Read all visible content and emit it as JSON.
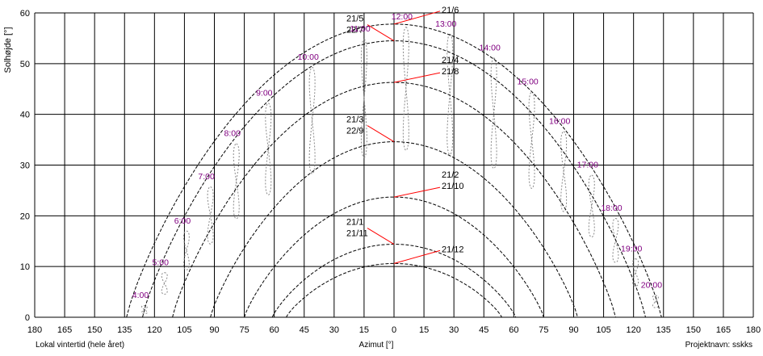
{
  "chart_data": {
    "type": "line",
    "title": "",
    "xlabel": "Azimut [°]",
    "ylabel": "Solhøjde [°]",
    "xlim": [
      -180,
      180
    ],
    "ylim": [
      0,
      60
    ],
    "x_ticks": [
      -180,
      -165,
      -150,
      -135,
      -120,
      -105,
      -90,
      -75,
      -60,
      -45,
      -30,
      -15,
      0,
      15,
      30,
      45,
      60,
      75,
      90,
      105,
      120,
      135,
      150,
      165,
      180
    ],
    "x_tick_labels": [
      "180",
      "165",
      "150",
      "135",
      "120",
      "105",
      "90",
      "75",
      "60",
      "45",
      "30",
      "15",
      "0",
      "15",
      "30",
      "45",
      "60",
      "75",
      "90",
      "105",
      "120",
      "135",
      "150",
      "165",
      "180"
    ],
    "y_ticks": [
      0,
      10,
      20,
      30,
      40,
      50,
      60
    ],
    "y_tick_labels": [
      "0",
      "10",
      "20",
      "30",
      "40",
      "50",
      "60"
    ],
    "grid": true,
    "grid_color": "#000000",
    "hour_label_color": "#800080",
    "pointer_color": "#ff0000",
    "footer_left": "Lokal vintertid (hele året)",
    "footer_right": "Projektnavn: sskks",
    "series": [
      {
        "label_lines": [
          "21/6"
        ],
        "noon_altitude": 57.8,
        "half_span_azimuth": 134,
        "label_side": "right"
      },
      {
        "label_lines": [
          "21/5",
          "22/7"
        ],
        "noon_altitude": 54.5,
        "half_span_azimuth": 126,
        "label_side": "left"
      },
      {
        "label_lines": [
          "21/4",
          "21/8"
        ],
        "noon_altitude": 46.3,
        "half_span_azimuth": 111,
        "label_side": "right"
      },
      {
        "label_lines": [
          "21/3",
          "22/9"
        ],
        "noon_altitude": 34.6,
        "half_span_azimuth": 92,
        "label_side": "left"
      },
      {
        "label_lines": [
          "21/2",
          "21/10"
        ],
        "noon_altitude": 23.7,
        "half_span_azimuth": 75,
        "label_side": "right"
      },
      {
        "label_lines": [
          "21/1",
          "21/11"
        ],
        "noon_altitude": 14.4,
        "half_span_azimuth": 61,
        "label_side": "left"
      },
      {
        "label_lines": [
          "21/12"
        ],
        "noon_altitude": 10.6,
        "half_span_azimuth": 54,
        "label_side": "right"
      }
    ],
    "hour_labels": [
      {
        "text": "4:00",
        "azimuth": -127,
        "altitude": 3.8
      },
      {
        "text": "5:00",
        "azimuth": -117,
        "altitude": 10.3
      },
      {
        "text": "6:00",
        "azimuth": -106,
        "altitude": 18.5
      },
      {
        "text": "7:00",
        "azimuth": -94,
        "altitude": 27.2
      },
      {
        "text": "8:00",
        "azimuth": -81,
        "altitude": 35.7
      },
      {
        "text": "9:00",
        "azimuth": -65,
        "altitude": 43.7
      },
      {
        "text": "10:00",
        "azimuth": -43,
        "altitude": 50.8
      },
      {
        "text": "11:00",
        "azimuth": -17,
        "altitude": 56.3
      },
      {
        "text": "12:00",
        "azimuth": 4,
        "altitude": 58.7
      },
      {
        "text": "13:00",
        "azimuth": 26,
        "altitude": 57.3
      },
      {
        "text": "14:00",
        "azimuth": 48,
        "altitude": 52.6
      },
      {
        "text": "15:00",
        "azimuth": 67,
        "altitude": 45.9
      },
      {
        "text": "16:00",
        "azimuth": 83,
        "altitude": 38.1
      },
      {
        "text": "17:00",
        "azimuth": 97,
        "altitude": 29.5
      },
      {
        "text": "18:00",
        "azimuth": 109,
        "altitude": 21.0
      },
      {
        "text": "19:00",
        "azimuth": 119,
        "altitude": 13.0
      },
      {
        "text": "20:00",
        "azimuth": 129,
        "altitude": 5.8
      }
    ]
  }
}
